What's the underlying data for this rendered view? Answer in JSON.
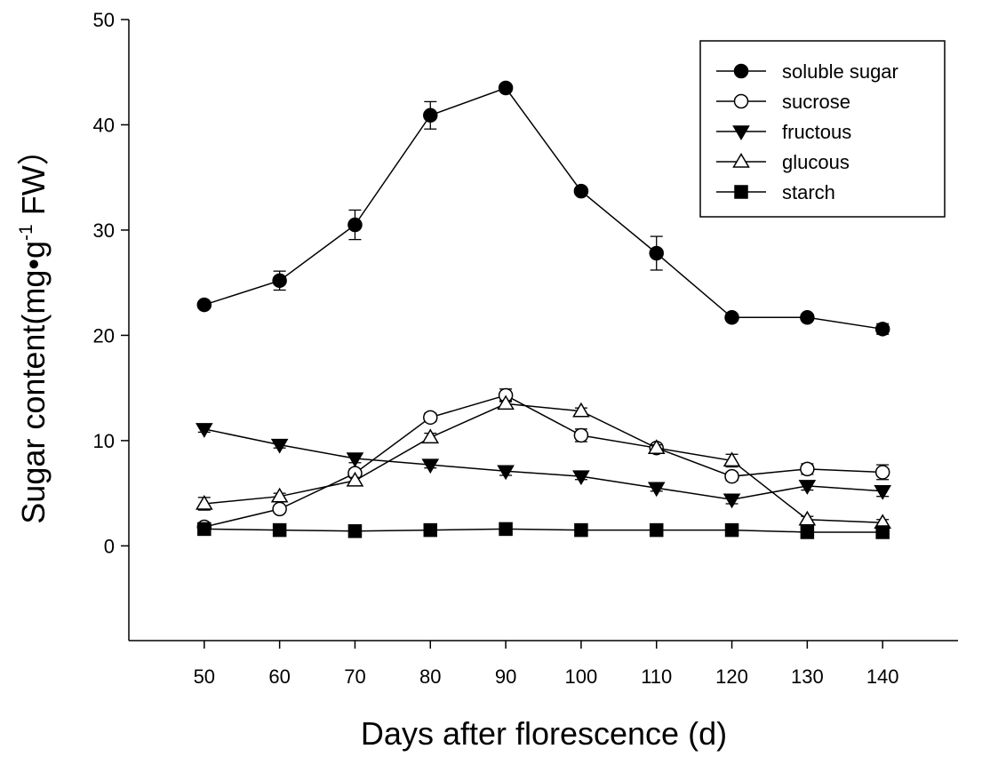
{
  "chart_data": {
    "type": "line",
    "xlabel": "Days after florescence (d)",
    "ylabel_main": "Sugar content(mg•g",
    "ylabel_sup": "-1",
    "ylabel_tail": " FW）",
    "xlim": [
      40,
      150
    ],
    "ylim": [
      -9,
      50
    ],
    "x_ticks": [
      50,
      60,
      70,
      80,
      90,
      100,
      110,
      120,
      130,
      140
    ],
    "y_ticks": [
      0,
      10,
      20,
      30,
      40,
      50
    ],
    "legend_position": "top-right",
    "x": [
      50,
      60,
      70,
      80,
      90,
      100,
      110,
      120,
      130,
      140
    ],
    "series": [
      {
        "name": "soluble sugar",
        "marker": "circle-filled",
        "values": [
          22.9,
          25.2,
          30.5,
          40.9,
          43.5,
          33.7,
          27.8,
          21.7,
          21.7,
          20.6
        ],
        "errors": [
          0.3,
          0.9,
          1.4,
          1.3,
          0.3,
          0.3,
          1.6,
          0.2,
          0.2,
          0.5
        ]
      },
      {
        "name": "sucrose",
        "marker": "circle-open",
        "values": [
          1.8,
          3.5,
          6.9,
          12.2,
          14.3,
          10.5,
          9.3,
          6.6,
          7.3,
          7.0
        ],
        "errors": [
          0.3,
          0.3,
          0.4,
          0.4,
          0.6,
          0.6,
          0.3,
          0.4,
          0.5,
          0.7
        ]
      },
      {
        "name": "fructous",
        "marker": "triangle-down-filled",
        "values": [
          11.1,
          9.6,
          8.3,
          7.7,
          7.1,
          6.6,
          5.5,
          4.4,
          5.7,
          5.2
        ],
        "errors": [
          0.3,
          0.3,
          0.4,
          0.3,
          0.4,
          0.3,
          0.3,
          0.4,
          0.4,
          0.5
        ]
      },
      {
        "name": "glucous",
        "marker": "triangle-up-open",
        "values": [
          4.0,
          4.7,
          6.2,
          10.3,
          13.5,
          12.8,
          9.3,
          8.1,
          2.5,
          2.2
        ],
        "errors": [
          0.6,
          0.3,
          0.3,
          0.4,
          0.3,
          0.3,
          0.3,
          0.6,
          0.3,
          0.3
        ]
      },
      {
        "name": "starch",
        "marker": "square-filled",
        "values": [
          1.6,
          1.5,
          1.4,
          1.5,
          1.6,
          1.5,
          1.5,
          1.5,
          1.3,
          1.3
        ],
        "errors": [
          0.1,
          0.1,
          0.1,
          0.1,
          0.1,
          0.1,
          0.1,
          0.1,
          0.1,
          0.1
        ]
      }
    ]
  }
}
